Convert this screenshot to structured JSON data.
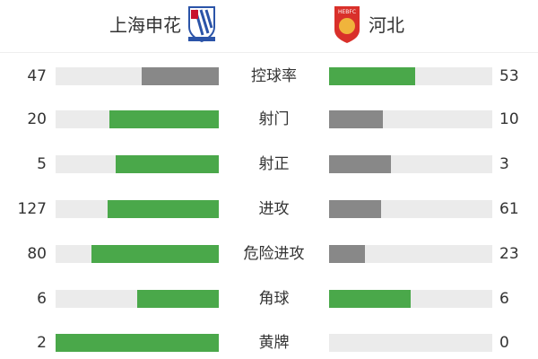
{
  "header": {
    "home_team": "上海申花",
    "away_team": "河北",
    "home_crest": "shanghai-shenhua-crest-icon",
    "away_crest": "hebei-fc-crest-icon",
    "away_crest_text": "HEBFC"
  },
  "colors": {
    "leader": "#4aa84a",
    "trailer": "#888888",
    "track": "#ebebeb"
  },
  "stats": [
    {
      "label": "控球率",
      "home": "47",
      "away": "53",
      "home_share": 0.47,
      "away_share": 0.53,
      "leader": "away"
    },
    {
      "label": "射门",
      "home": "20",
      "away": "10",
      "home_share": 0.67,
      "away_share": 0.33,
      "leader": "home"
    },
    {
      "label": "射正",
      "home": "5",
      "away": "3",
      "home_share": 0.63,
      "away_share": 0.38,
      "leader": "home"
    },
    {
      "label": "进攻",
      "home": "127",
      "away": "61",
      "home_share": 0.68,
      "away_share": 0.32,
      "leader": "home"
    },
    {
      "label": "危险进攻",
      "home": "80",
      "away": "23",
      "home_share": 0.78,
      "away_share": 0.22,
      "leader": "home"
    },
    {
      "label": "角球",
      "home": "6",
      "away": "6",
      "home_share": 0.5,
      "away_share": 0.5,
      "leader": "both"
    },
    {
      "label": "黄牌",
      "home": "2",
      "away": "0",
      "home_share": 1.0,
      "away_share": 0.0,
      "leader": "home"
    }
  ]
}
